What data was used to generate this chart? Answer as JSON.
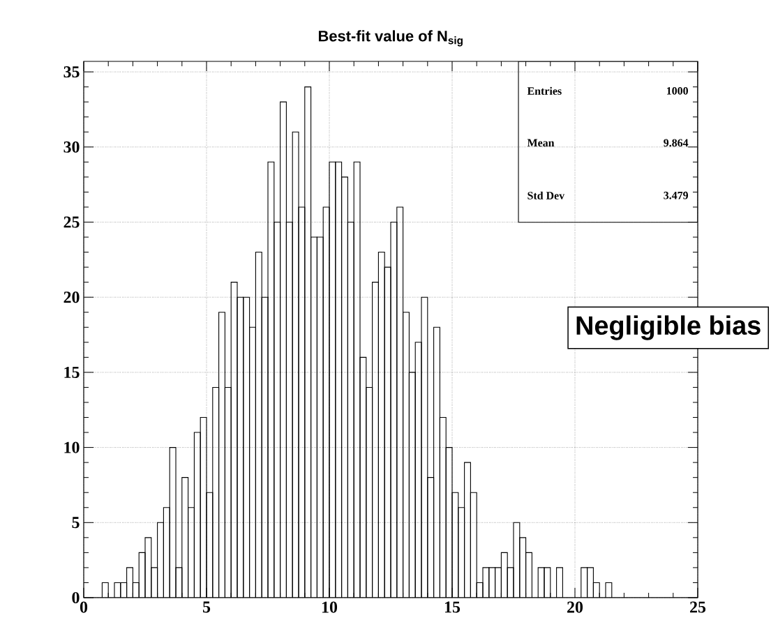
{
  "chart_data": {
    "type": "histogram",
    "title": "Best-fit value of N$_{sig}$",
    "bins": [
      0,
      0.25,
      0.5,
      0.75,
      1,
      1.25,
      1.5,
      1.75,
      2,
      2.25,
      2.5,
      2.75,
      3,
      3.25,
      3.5,
      3.75,
      4,
      4.25,
      4.5,
      4.75,
      5,
      5.25,
      5.5,
      5.75,
      6,
      6.25,
      6.5,
      6.75,
      7,
      7.25,
      7.5,
      7.75,
      8,
      8.25,
      8.5,
      8.75,
      9,
      9.25,
      9.5,
      9.75,
      10,
      10.25,
      10.5,
      10.75,
      11,
      11.25,
      11.5,
      11.75,
      12,
      12.25,
      12.5,
      12.75,
      13,
      13.25,
      13.5,
      13.75,
      14,
      14.25,
      14.5,
      14.75,
      15,
      15.25,
      15.5,
      15.75,
      16,
      16.25,
      16.5,
      16.75,
      17,
      17.25,
      17.5,
      17.75,
      18,
      18.25,
      18.5,
      18.75,
      19,
      19.25,
      19.5,
      19.75,
      20,
      20.25,
      20.5,
      20.75,
      21,
      21.25,
      21.5,
      21.75,
      22,
      22.25,
      22.5,
      22.75,
      23,
      23.25,
      23.5,
      23.75,
      24,
      24.25,
      24.5,
      24.75,
      25
    ],
    "values": [
      0,
      0,
      0,
      1,
      0,
      1,
      1,
      2,
      1,
      3,
      4,
      2,
      5,
      6,
      10,
      2,
      8,
      6,
      11,
      12,
      7,
      14,
      19,
      14,
      21,
      20,
      20,
      18,
      23,
      20,
      29,
      25,
      33,
      25,
      31,
      26,
      34,
      24,
      24,
      26,
      29,
      29,
      28,
      25,
      29,
      16,
      14,
      21,
      23,
      22,
      25,
      26,
      19,
      15,
      17,
      20,
      8,
      18,
      12,
      10,
      7,
      6,
      9,
      7,
      1,
      2,
      2,
      2,
      3,
      2,
      5,
      4,
      3,
      0,
      2,
      2,
      0,
      2,
      0,
      0,
      0,
      2,
      2,
      1,
      0,
      1,
      0,
      0,
      0,
      0,
      0,
      0,
      0,
      0,
      0,
      0,
      0,
      0,
      0,
      0
    ],
    "color": "#000000",
    "xlim": [
      0,
      25
    ],
    "ylim": [
      0,
      35.7
    ],
    "xticks": [
      0,
      5,
      10,
      15,
      20,
      25
    ],
    "yticks": [
      0,
      5,
      10,
      15,
      20,
      25,
      30,
      35
    ],
    "grid": true,
    "annotations": [
      "Entries",
      "1000",
      "Mean",
      "9.864",
      "Std Dev",
      "3.479",
      "Negligible bias"
    ]
  }
}
